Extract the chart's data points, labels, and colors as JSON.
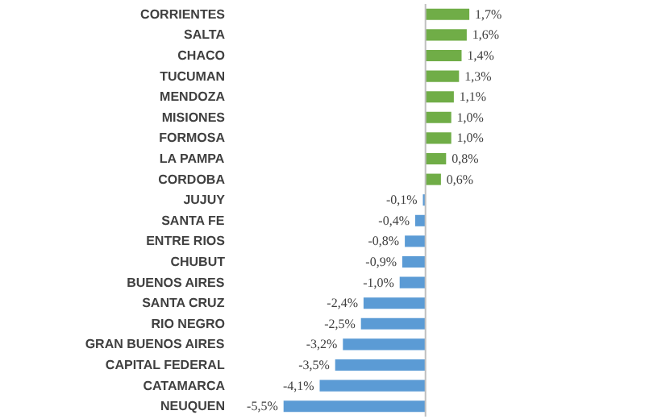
{
  "chart_data": {
    "type": "bar",
    "orientation": "horizontal",
    "categories": [
      "CORRIENTES",
      "SALTA",
      "CHACO",
      "TUCUMAN",
      "MENDOZA",
      "MISIONES",
      "FORMOSA",
      "LA PAMPA",
      "CORDOBA",
      "JUJUY",
      "SANTA FE",
      "ENTRE RIOS",
      "CHUBUT",
      "BUENOS AIRES",
      "SANTA CRUZ",
      "RIO NEGRO",
      "GRAN BUENOS AIRES",
      "CAPITAL FEDERAL",
      "CATAMARCA",
      "NEUQUEN"
    ],
    "values": [
      1.7,
      1.6,
      1.4,
      1.3,
      1.1,
      1.0,
      1.0,
      0.8,
      0.6,
      -0.1,
      -0.4,
      -0.8,
      -0.9,
      -1.0,
      -2.4,
      -2.5,
      -3.2,
      -3.5,
      -4.1,
      -5.5
    ],
    "colors": [
      "#70ad47",
      "#70ad47",
      "#70ad47",
      "#70ad47",
      "#70ad47",
      "#70ad47",
      "#70ad47",
      "#70ad47",
      "#70ad47",
      "#5b9bd5",
      "#5b9bd5",
      "#5b9bd5",
      "#5b9bd5",
      "#5b9bd5",
      "#5b9bd5",
      "#5b9bd5",
      "#5b9bd5",
      "#5b9bd5",
      "#5b9bd5",
      "#5b9bd5"
    ],
    "value_labels": [
      "1,7%",
      "1,6%",
      "1,4%",
      "1,3%",
      "1,1%",
      "1,0%",
      "1,0%",
      "0,8%",
      "0,6%",
      "-0,1%",
      "-0,4%",
      "-0,8%",
      "-0,9%",
      "-1,0%",
      "-2,4%",
      "-2,5%",
      "-3,2%",
      "-3,5%",
      "-4,1%",
      "-5,5%"
    ]
  }
}
